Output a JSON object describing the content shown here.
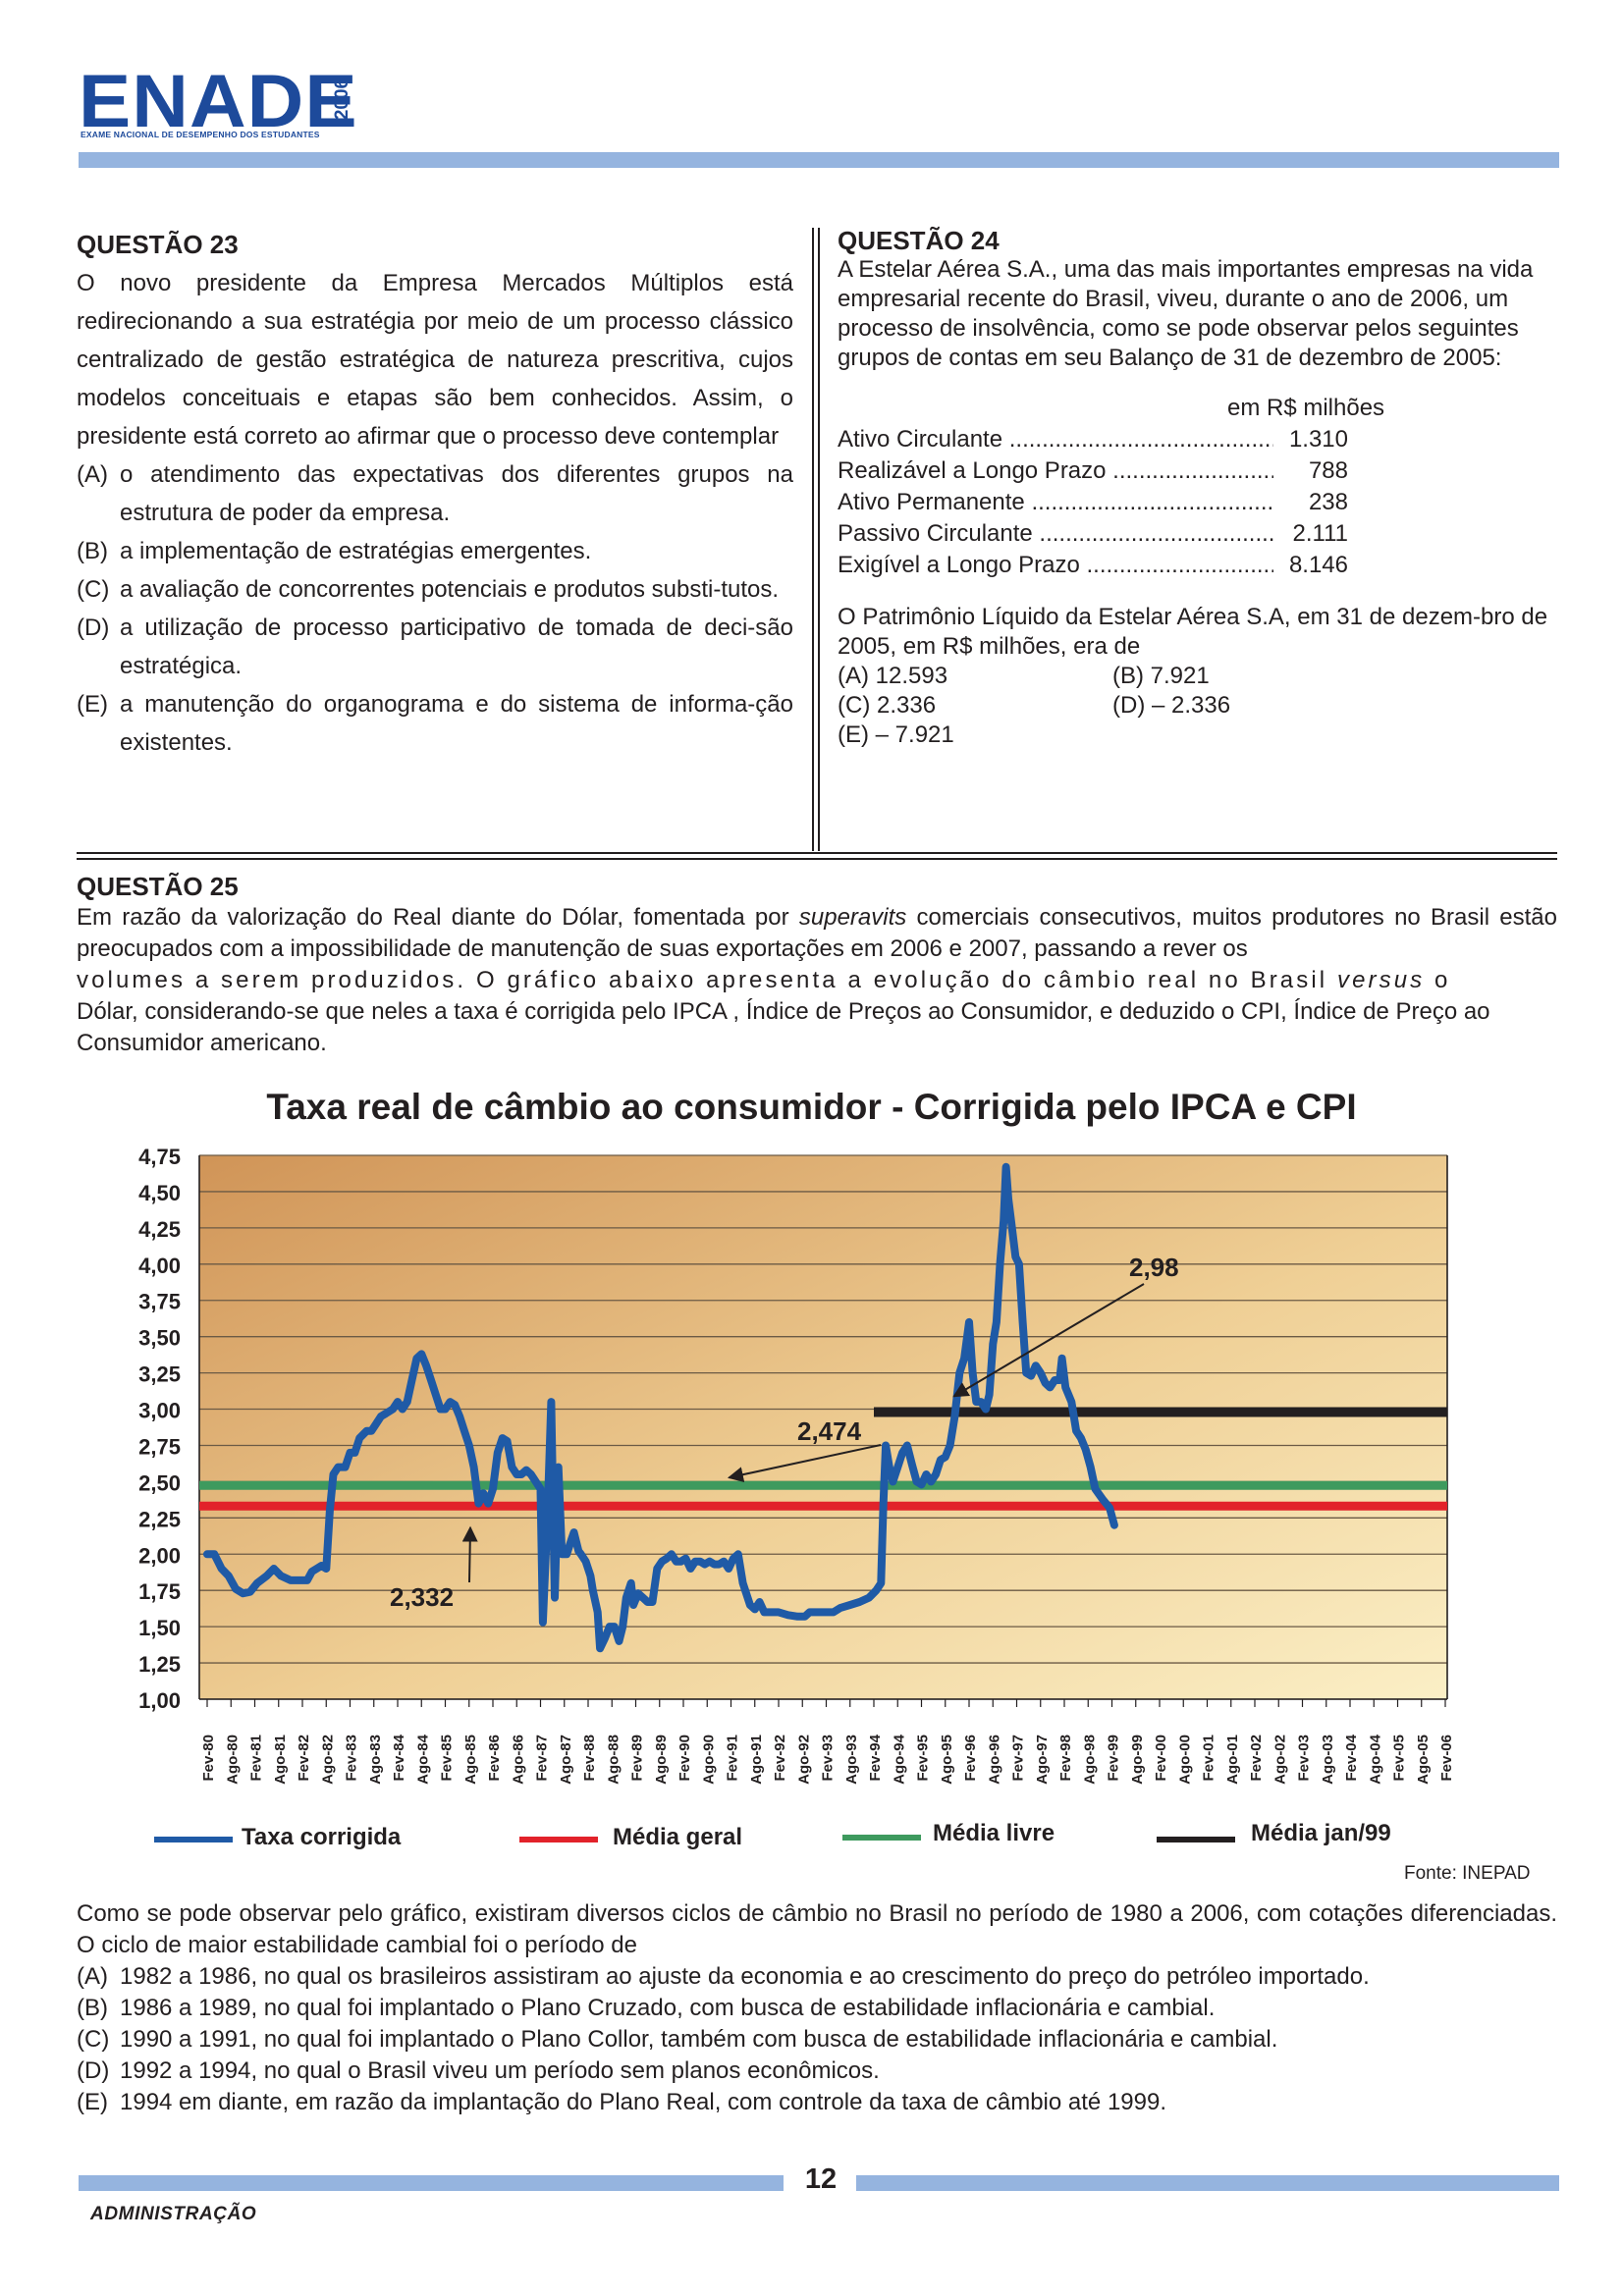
{
  "header": {
    "logo": "ENADE",
    "year": "2006",
    "subtitle": "EXAME NACIONAL DE DESEMPENHO DOS ESTUDANTES"
  },
  "q23": {
    "title": "QUESTÃO 23",
    "stem": "O novo presidente da Empresa Mercados Múltiplos está redirecionando a sua estratégia por meio de um processo clássico centralizado de gestão estratégica de natureza prescritiva, cujos modelos conceituais e etapas são bem conhecidos. Assim, o presidente está correto ao afirmar que o processo deve contemplar",
    "options": [
      {
        "letter": "(A)",
        "text": "o atendimento das expectativas dos diferentes grupos na estrutura de poder da empresa."
      },
      {
        "letter": "(B)",
        "text": "a implementação de estratégias emergentes."
      },
      {
        "letter": "(C)",
        "text": "a avaliação de concorrentes potenciais e produtos substi-tutos."
      },
      {
        "letter": "(D)",
        "text": "a utilização de processo participativo de tomada de deci-são estratégica."
      },
      {
        "letter": "(E)",
        "text": "a manutenção do organograma e do sistema de informa-ção existentes."
      }
    ]
  },
  "q24": {
    "title": "QUESTÃO 24",
    "stem": "A Estelar Aérea S.A., uma das mais importantes empresas na vida empresarial recente do Brasil, viveu, durante o ano de 2006, um processo de insolvência, como se pode observar pelos seguintes grupos de contas em seu Balanço de 31 de dezembro de 2005:",
    "unit": "em R$ milhões",
    "rows": [
      {
        "label": "Ativo Circulante ....................................................",
        "value": "1.310"
      },
      {
        "label": "Realizável a Longo Prazo ......................................",
        "value": "788"
      },
      {
        "label": "Ativo Permanente ...................................................",
        "value": "238"
      },
      {
        "label": "Passivo Circulante ..................................................",
        "value": "2.111"
      },
      {
        "label": "Exigível a Longo Prazo ..........................................",
        "value": "8.146"
      }
    ],
    "question": "O Patrimônio Líquido da Estelar Aérea S.A, em 31 de dezem-bro de 2005, em R$ milhões, era de",
    "options": [
      {
        "left": "(A)   12.593",
        "right": "(B)    7.921"
      },
      {
        "left": "(C)     2.336",
        "right": "(D)  – 2.336"
      },
      {
        "left": "(E)  – 7.921",
        "right": ""
      }
    ]
  },
  "q25": {
    "title": "QUESTÃO 25",
    "intro_1": "Em razão da valorização do Real diante do Dólar, fomentada por ",
    "intro_italic_1": "superavits",
    "intro_2": " comerciais consecutivos, muitos produtores no Brasil estão preocupados com a impossibilidade de manutenção de suas exportações em 2006 e 2007, passando a rever os",
    "intro_3": "volumes a serem produzidos. O gráfico abaixo apresenta a evolução do câmbio real no Brasil ",
    "intro_italic_2": "versus",
    "intro_4": " o",
    "intro_5": "Dólar, considerando-se que neles a taxa é corrigida pelo IPCA , Índice de Preços ao Consumidor, e deduzido o CPI, Índice de Preço ao Consumidor americano.",
    "after_chart": "Como se pode observar pelo gráfico, existiram diversos ciclos de câmbio no Brasil no período de 1980 a 2006, com cotações diferenciadas. O ciclo de maior estabilidade cambial foi o período de",
    "options": [
      {
        "letter": "(A)",
        "text": "1982 a 1986, no qual os brasileiros assistiram ao ajuste da economia e ao crescimento do preço do petróleo importado."
      },
      {
        "letter": "(B)",
        "text": "1986 a 1989, no qual foi implantado o Plano Cruzado, com busca de estabilidade inflacionária e cambial."
      },
      {
        "letter": "(C)",
        "text": "1990 a 1991, no qual foi implantado o Plano Collor, também com busca de estabilidade inflacionária e cambial."
      },
      {
        "letter": "(D)",
        "text": "1992 a 1994, no qual o Brasil viveu um período sem planos econômicos."
      },
      {
        "letter": "(E)",
        "text": "1994 em diante, em razão da implantação do Plano Real, com controle da taxa de câmbio até 1999."
      }
    ],
    "source": "Fonte: INEPAD"
  },
  "chart_data": {
    "type": "line",
    "title": "Taxa real de câmbio ao consumidor - Corrigida pelo IPCA e CPI",
    "ylim": [
      1.0,
      4.75
    ],
    "yticks": [
      "1,00",
      "1,25",
      "1,50",
      "1,75",
      "2,00",
      "2,25",
      "2,50",
      "2,75",
      "3,00",
      "3,25",
      "3,50",
      "3,75",
      "4,00",
      "4,25",
      "4,50",
      "4,75"
    ],
    "categories": [
      "Fev-80",
      "Ago-80",
      "Fev-81",
      "Ago-81",
      "Fev-82",
      "Ago-82",
      "Fev-83",
      "Ago-83",
      "Fev-84",
      "Ago-84",
      "Fev-85",
      "Ago-85",
      "Fev-86",
      "Ago-86",
      "Fev-87",
      "Ago-87",
      "Fev-88",
      "Ago-88",
      "Fev-89",
      "Ago-89",
      "Fev-90",
      "Ago-90",
      "Fev-91",
      "Ago-91",
      "Fev-92",
      "Ago-92",
      "Fev-93",
      "Ago-93",
      "Fev-94",
      "Ago-94",
      "Fev-95",
      "Ago-95",
      "Fev-96",
      "Ago-96",
      "Fev-97",
      "Ago-97",
      "Fev-98",
      "Ago-98",
      "Fev-99",
      "Ago-99",
      "Fev-00",
      "Ago-00",
      "Fev-01",
      "Ago-01",
      "Fev-02",
      "Ago-02",
      "Fev-03",
      "Ago-03",
      "Fev-04",
      "Ago-04",
      "Fev-05",
      "Ago-05",
      "Fev-06"
    ],
    "grid": true,
    "series": [
      {
        "name": "Taxa corrigida",
        "color": "#1f5aa6",
        "points": [
          [
            0,
            2.0
          ],
          [
            0.3,
            2.0
          ],
          [
            0.6,
            1.9
          ],
          [
            0.9,
            1.85
          ],
          [
            1.2,
            1.76
          ],
          [
            1.5,
            1.73
          ],
          [
            1.8,
            1.74
          ],
          [
            2.1,
            1.8
          ],
          [
            2.5,
            1.85
          ],
          [
            2.8,
            1.9
          ],
          [
            3.1,
            1.85
          ],
          [
            3.5,
            1.82
          ],
          [
            3.9,
            1.82
          ],
          [
            4.2,
            1.82
          ],
          [
            4.4,
            1.88
          ],
          [
            4.6,
            1.9
          ],
          [
            4.8,
            1.92
          ],
          [
            5.0,
            1.9
          ],
          [
            5.15,
            2.3
          ],
          [
            5.3,
            2.55
          ],
          [
            5.5,
            2.6
          ],
          [
            5.8,
            2.6
          ],
          [
            6.0,
            2.7
          ],
          [
            6.2,
            2.7
          ],
          [
            6.4,
            2.8
          ],
          [
            6.7,
            2.85
          ],
          [
            6.9,
            2.85
          ],
          [
            7.1,
            2.9
          ],
          [
            7.3,
            2.95
          ],
          [
            7.5,
            2.97
          ],
          [
            7.8,
            3.0
          ],
          [
            8.0,
            3.05
          ],
          [
            8.2,
            3.0
          ],
          [
            8.4,
            3.05
          ],
          [
            8.6,
            3.2
          ],
          [
            8.8,
            3.35
          ],
          [
            9.0,
            3.38
          ],
          [
            9.2,
            3.3
          ],
          [
            9.4,
            3.2
          ],
          [
            9.6,
            3.1
          ],
          [
            9.8,
            3.0
          ],
          [
            10.0,
            3.0
          ],
          [
            10.2,
            3.05
          ],
          [
            10.4,
            3.03
          ],
          [
            10.6,
            2.95
          ],
          [
            10.8,
            2.85
          ],
          [
            11.0,
            2.75
          ],
          [
            11.2,
            2.6
          ],
          [
            11.4,
            2.35
          ],
          [
            11.6,
            2.42
          ],
          [
            11.8,
            2.35
          ],
          [
            12.0,
            2.45
          ],
          [
            12.2,
            2.7
          ],
          [
            12.4,
            2.8
          ],
          [
            12.6,
            2.78
          ],
          [
            12.8,
            2.6
          ],
          [
            13.0,
            2.55
          ],
          [
            13.2,
            2.55
          ],
          [
            13.4,
            2.58
          ],
          [
            13.6,
            2.55
          ],
          [
            13.8,
            2.5
          ],
          [
            14.0,
            2.45
          ],
          [
            14.1,
            1.53
          ],
          [
            14.3,
            2.3
          ],
          [
            14.45,
            3.05
          ],
          [
            14.6,
            1.7
          ],
          [
            14.75,
            2.6
          ],
          [
            14.9,
            2.0
          ],
          [
            15.1,
            2.0
          ],
          [
            15.3,
            2.1
          ],
          [
            15.4,
            2.15
          ],
          [
            15.6,
            2.02
          ],
          [
            15.7,
            2.0
          ],
          [
            15.9,
            1.95
          ],
          [
            16.1,
            1.85
          ],
          [
            16.2,
            1.75
          ],
          [
            16.4,
            1.6
          ],
          [
            16.5,
            1.35
          ],
          [
            16.7,
            1.42
          ],
          [
            16.9,
            1.5
          ],
          [
            17.1,
            1.5
          ],
          [
            17.3,
            1.4
          ],
          [
            17.45,
            1.5
          ],
          [
            17.6,
            1.7
          ],
          [
            17.8,
            1.8
          ],
          [
            17.9,
            1.65
          ],
          [
            18.1,
            1.73
          ],
          [
            18.3,
            1.7
          ],
          [
            18.5,
            1.67
          ],
          [
            18.7,
            1.67
          ],
          [
            18.9,
            1.9
          ],
          [
            19.1,
            1.95
          ],
          [
            19.3,
            1.97
          ],
          [
            19.5,
            2.0
          ],
          [
            19.7,
            1.95
          ],
          [
            19.9,
            1.95
          ],
          [
            20.1,
            1.97
          ],
          [
            20.3,
            1.9
          ],
          [
            20.5,
            1.95
          ],
          [
            20.7,
            1.95
          ],
          [
            20.9,
            1.93
          ],
          [
            21.1,
            1.95
          ],
          [
            21.3,
            1.93
          ],
          [
            21.5,
            1.93
          ],
          [
            21.7,
            1.95
          ],
          [
            21.9,
            1.9
          ],
          [
            22.1,
            1.97
          ],
          [
            22.3,
            2.0
          ],
          [
            22.5,
            1.8
          ],
          [
            22.8,
            1.65
          ],
          [
            23.0,
            1.62
          ],
          [
            23.2,
            1.67
          ],
          [
            23.4,
            1.6
          ],
          [
            23.7,
            1.6
          ],
          [
            24.0,
            1.6
          ],
          [
            24.4,
            1.58
          ],
          [
            24.8,
            1.57
          ],
          [
            25.1,
            1.57
          ],
          [
            25.3,
            1.6
          ],
          [
            25.6,
            1.6
          ],
          [
            26.0,
            1.6
          ],
          [
            26.3,
            1.6
          ],
          [
            26.6,
            1.63
          ],
          [
            27.0,
            1.65
          ],
          [
            27.4,
            1.67
          ],
          [
            27.8,
            1.7
          ],
          [
            28.1,
            1.75
          ],
          [
            28.3,
            1.8
          ],
          [
            28.4,
            2.35
          ],
          [
            28.5,
            2.75
          ],
          [
            28.65,
            2.6
          ],
          [
            28.8,
            2.5
          ],
          [
            29.0,
            2.6
          ],
          [
            29.2,
            2.7
          ],
          [
            29.4,
            2.75
          ],
          [
            29.6,
            2.62
          ],
          [
            29.8,
            2.5
          ],
          [
            30.0,
            2.48
          ],
          [
            30.2,
            2.55
          ],
          [
            30.4,
            2.5
          ],
          [
            30.6,
            2.55
          ],
          [
            30.8,
            2.65
          ],
          [
            31.0,
            2.67
          ],
          [
            31.2,
            2.75
          ],
          [
            31.4,
            2.95
          ],
          [
            31.6,
            3.25
          ],
          [
            31.8,
            3.35
          ],
          [
            32.0,
            3.6
          ],
          [
            32.15,
            3.25
          ],
          [
            32.3,
            3.05
          ],
          [
            32.5,
            3.05
          ],
          [
            32.7,
            3.0
          ],
          [
            32.85,
            3.1
          ],
          [
            33.0,
            3.45
          ],
          [
            33.15,
            3.6
          ],
          [
            33.3,
            4.0
          ],
          [
            33.45,
            4.3
          ],
          [
            33.55,
            4.67
          ],
          [
            33.65,
            4.45
          ],
          [
            33.8,
            4.25
          ],
          [
            33.95,
            4.05
          ],
          [
            34.1,
            4.0
          ],
          [
            34.25,
            3.6
          ],
          [
            34.4,
            3.25
          ],
          [
            34.6,
            3.23
          ],
          [
            34.8,
            3.3
          ],
          [
            35.0,
            3.25
          ],
          [
            35.2,
            3.18
          ],
          [
            35.4,
            3.15
          ],
          [
            35.6,
            3.2
          ],
          [
            35.8,
            3.2
          ],
          [
            35.9,
            3.35
          ],
          [
            36.05,
            3.15
          ],
          [
            36.3,
            3.05
          ],
          [
            36.5,
            2.85
          ],
          [
            36.7,
            2.8
          ],
          [
            36.9,
            2.72
          ],
          [
            37.1,
            2.6
          ],
          [
            37.3,
            2.45
          ],
          [
            37.6,
            2.38
          ],
          [
            37.9,
            2.32
          ],
          [
            38.1,
            2.2
          ]
        ]
      },
      {
        "name": "Média geral",
        "color": "#e2222a",
        "value": 2.332,
        "x_from": 0,
        "x_to": 38.2
      },
      {
        "name": "Média livre",
        "color": "#3e9a5e",
        "value": 2.474,
        "x_from": 0,
        "x_to": 38.2
      },
      {
        "name": "Média jan/99",
        "color": "#231f20",
        "value": 2.98,
        "x_from": 28.0,
        "x_to": 38.2
      }
    ],
    "annotations": [
      {
        "text": "2,332",
        "x": 11.3,
        "y": 2.332
      },
      {
        "text": "2,474",
        "x": 22.0,
        "y": 2.474
      },
      {
        "text": "2,98",
        "x": 31.2,
        "y": 2.98
      }
    ],
    "legend": [
      "Taxa corrigida",
      "Média geral",
      "Média livre",
      "Média jan/99"
    ]
  },
  "footer": {
    "page": "12",
    "course": "ADMINISTRAÇÃO"
  }
}
